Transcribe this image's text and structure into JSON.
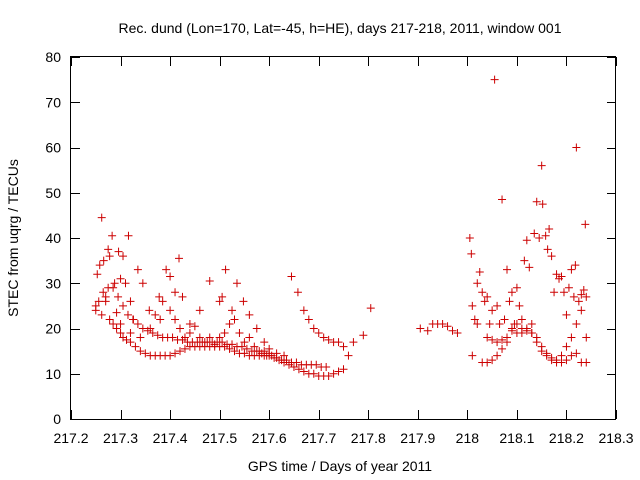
{
  "chart_data": {
    "type": "scatter",
    "title": "Rec. dund (Lon=170, Lat=-45, h=HE), days 217-218, 2011, window 001",
    "xlabel": "GPS time / Days of year 2011",
    "ylabel": "STEC from uqrg / TECUs",
    "xlim": [
      217.2,
      218.3
    ],
    "ylim": [
      0,
      80
    ],
    "xticks": [
      "217.2",
      "217.3",
      "217.4",
      "217.5",
      "217.6",
      "217.7",
      "217.8",
      "217.9",
      "218",
      "218.1",
      "218.2",
      "218.3"
    ],
    "yticks": [
      "0",
      "10",
      "20",
      "30",
      "40",
      "50",
      "60",
      "70",
      "80"
    ],
    "grid": false,
    "marker": "plus",
    "color": "#cc0000",
    "points": [
      [
        217.25,
        25
      ],
      [
        217.253,
        32
      ],
      [
        217.258,
        34
      ],
      [
        217.262,
        44.5
      ],
      [
        217.266,
        35
      ],
      [
        217.27,
        26
      ],
      [
        217.275,
        37.5
      ],
      [
        217.278,
        36
      ],
      [
        217.283,
        40.5
      ],
      [
        217.288,
        30
      ],
      [
        217.292,
        23.5
      ],
      [
        217.296,
        37
      ],
      [
        217.3,
        31
      ],
      [
        217.305,
        36
      ],
      [
        217.31,
        30
      ],
      [
        217.316,
        40.5
      ],
      [
        217.32,
        26
      ],
      [
        217.326,
        22
      ],
      [
        217.335,
        33
      ],
      [
        217.345,
        30
      ],
      [
        217.358,
        24
      ],
      [
        217.37,
        23
      ],
      [
        217.378,
        27
      ],
      [
        217.385,
        26
      ],
      [
        217.392,
        33
      ],
      [
        217.4,
        31.5
      ],
      [
        217.41,
        28
      ],
      [
        217.418,
        35.5
      ],
      [
        217.425,
        27
      ],
      [
        217.44,
        21
      ],
      [
        217.46,
        24
      ],
      [
        217.48,
        30.5
      ],
      [
        217.5,
        26
      ],
      [
        217.505,
        27
      ],
      [
        217.512,
        33
      ],
      [
        217.525,
        24
      ],
      [
        217.535,
        30
      ],
      [
        217.548,
        26
      ],
      [
        217.56,
        23
      ],
      [
        217.575,
        20
      ],
      [
        217.59,
        17
      ],
      [
        217.6,
        15.5
      ],
      [
        217.615,
        14.5
      ],
      [
        217.63,
        14
      ],
      [
        217.645,
        31.5
      ],
      [
        217.658,
        28
      ],
      [
        217.67,
        24
      ],
      [
        217.68,
        22
      ],
      [
        217.69,
        20
      ],
      [
        217.7,
        19
      ],
      [
        217.71,
        18
      ],
      [
        217.72,
        17.5
      ],
      [
        217.73,
        17
      ],
      [
        217.74,
        17
      ],
      [
        217.75,
        16
      ],
      [
        217.76,
        14
      ],
      [
        217.77,
        17
      ],
      [
        217.79,
        18.5
      ],
      [
        217.805,
        24.5
      ],
      [
        217.25,
        24
      ],
      [
        217.256,
        26
      ],
      [
        217.262,
        23
      ],
      [
        217.27,
        27
      ],
      [
        217.278,
        22
      ],
      [
        217.285,
        21
      ],
      [
        217.292,
        20
      ],
      [
        217.3,
        19
      ],
      [
        217.305,
        18
      ],
      [
        217.312,
        17.5
      ],
      [
        217.32,
        17
      ],
      [
        217.33,
        16
      ],
      [
        217.34,
        15
      ],
      [
        217.35,
        14.5
      ],
      [
        217.36,
        14
      ],
      [
        217.37,
        14
      ],
      [
        217.38,
        14
      ],
      [
        217.39,
        14
      ],
      [
        217.4,
        14
      ],
      [
        217.41,
        14.5
      ],
      [
        217.42,
        15
      ],
      [
        217.43,
        15.5
      ],
      [
        217.44,
        16
      ],
      [
        217.45,
        16
      ],
      [
        217.46,
        16
      ],
      [
        217.47,
        16
      ],
      [
        217.48,
        16
      ],
      [
        217.49,
        16
      ],
      [
        217.5,
        16
      ],
      [
        217.51,
        16
      ],
      [
        217.52,
        15.5
      ],
      [
        217.53,
        15
      ],
      [
        217.54,
        14.5
      ],
      [
        217.55,
        14.5
      ],
      [
        217.56,
        14
      ],
      [
        217.57,
        14
      ],
      [
        217.58,
        14
      ],
      [
        217.59,
        14
      ],
      [
        217.6,
        14
      ],
      [
        217.61,
        13.5
      ],
      [
        217.62,
        13
      ],
      [
        217.63,
        12.5
      ],
      [
        217.64,
        12
      ],
      [
        217.65,
        11.5
      ],
      [
        217.66,
        11
      ],
      [
        217.67,
        10.5
      ],
      [
        217.68,
        10
      ],
      [
        217.69,
        10
      ],
      [
        217.7,
        9.5
      ],
      [
        217.71,
        9.5
      ],
      [
        217.72,
        9.5
      ],
      [
        217.73,
        10
      ],
      [
        217.74,
        10.5
      ],
      [
        217.75,
        11
      ],
      [
        217.265,
        28
      ],
      [
        217.275,
        29
      ],
      [
        217.285,
        29
      ],
      [
        217.295,
        27
      ],
      [
        217.305,
        25
      ],
      [
        217.315,
        23
      ],
      [
        217.325,
        22
      ],
      [
        217.335,
        21
      ],
      [
        217.345,
        20
      ],
      [
        217.355,
        19.5
      ],
      [
        217.365,
        19
      ],
      [
        217.375,
        18.5
      ],
      [
        217.385,
        18
      ],
      [
        217.395,
        18
      ],
      [
        217.405,
        18
      ],
      [
        217.415,
        17.5
      ],
      [
        217.425,
        17.5
      ],
      [
        217.435,
        17
      ],
      [
        217.445,
        17
      ],
      [
        217.455,
        17
      ],
      [
        217.465,
        17
      ],
      [
        217.475,
        17
      ],
      [
        217.485,
        17
      ],
      [
        217.495,
        17
      ],
      [
        217.505,
        17
      ],
      [
        217.515,
        16.5
      ],
      [
        217.525,
        16.5
      ],
      [
        217.535,
        16
      ],
      [
        217.545,
        16
      ],
      [
        217.555,
        15.5
      ],
      [
        217.565,
        15
      ],
      [
        217.575,
        15
      ],
      [
        217.585,
        14.5
      ],
      [
        217.595,
        14
      ],
      [
        217.605,
        14
      ],
      [
        217.615,
        13.5
      ],
      [
        217.625,
        13
      ],
      [
        217.635,
        13
      ],
      [
        217.645,
        12.5
      ],
      [
        217.655,
        12.5
      ],
      [
        217.665,
        12
      ],
      [
        217.675,
        12
      ],
      [
        217.685,
        12
      ],
      [
        217.695,
        12
      ],
      [
        217.705,
        11.5
      ],
      [
        217.715,
        11.5
      ],
      [
        217.3,
        21
      ],
      [
        217.32,
        19
      ],
      [
        217.34,
        18
      ],
      [
        217.36,
        20
      ],
      [
        217.38,
        22
      ],
      [
        217.4,
        24
      ],
      [
        217.41,
        22
      ],
      [
        217.42,
        20
      ],
      [
        217.43,
        18
      ],
      [
        217.44,
        19
      ],
      [
        217.45,
        20.5
      ],
      [
        217.46,
        18
      ],
      [
        217.47,
        17
      ],
      [
        217.48,
        18
      ],
      [
        217.49,
        16.5
      ],
      [
        217.5,
        18
      ],
      [
        217.51,
        19
      ],
      [
        217.52,
        21
      ],
      [
        217.53,
        22
      ],
      [
        217.54,
        19
      ],
      [
        217.55,
        17
      ],
      [
        217.56,
        18
      ],
      [
        217.57,
        16
      ],
      [
        217.58,
        15
      ],
      [
        217.59,
        15
      ],
      [
        217.6,
        14.5
      ],
      [
        217.905,
        20
      ],
      [
        217.92,
        19.5
      ],
      [
        217.93,
        21
      ],
      [
        217.94,
        21
      ],
      [
        217.95,
        21
      ],
      [
        217.96,
        20.5
      ],
      [
        217.97,
        19.5
      ],
      [
        217.98,
        19
      ],
      [
        218.005,
        40
      ],
      [
        218.008,
        36.5
      ],
      [
        218.01,
        25
      ],
      [
        218.015,
        22
      ],
      [
        218.02,
        30
      ],
      [
        218.025,
        32.5
      ],
      [
        218.03,
        28
      ],
      [
        218.035,
        26
      ],
      [
        218.04,
        27
      ],
      [
        218.045,
        21
      ],
      [
        218.05,
        24
      ],
      [
        218.055,
        75
      ],
      [
        218.06,
        25
      ],
      [
        218.065,
        21
      ],
      [
        218.07,
        48.5
      ],
      [
        218.075,
        22
      ],
      [
        218.08,
        33
      ],
      [
        218.085,
        26
      ],
      [
        218.09,
        28
      ],
      [
        218.095,
        21
      ],
      [
        218.1,
        29
      ],
      [
        218.105,
        25
      ],
      [
        218.11,
        20
      ],
      [
        218.115,
        35
      ],
      [
        218.12,
        39.5
      ],
      [
        218.125,
        33.5
      ],
      [
        218.13,
        21
      ],
      [
        218.135,
        41
      ],
      [
        218.14,
        48
      ],
      [
        218.145,
        40
      ],
      [
        218.15,
        56
      ],
      [
        218.152,
        47.5
      ],
      [
        218.158,
        40.5
      ],
      [
        218.162,
        37.5
      ],
      [
        218.165,
        42
      ],
      [
        218.17,
        36
      ],
      [
        218.175,
        28
      ],
      [
        218.18,
        32
      ],
      [
        218.185,
        31
      ],
      [
        218.19,
        31.5
      ],
      [
        218.195,
        28
      ],
      [
        218.2,
        23
      ],
      [
        218.205,
        29
      ],
      [
        218.21,
        33
      ],
      [
        218.215,
        27
      ],
      [
        218.218,
        34
      ],
      [
        218.22,
        60
      ],
      [
        218.225,
        26
      ],
      [
        218.23,
        27.5
      ],
      [
        218.235,
        28.5
      ],
      [
        218.238,
        43
      ],
      [
        218.24,
        18
      ],
      [
        218.01,
        14
      ],
      [
        218.02,
        21
      ],
      [
        218.03,
        12.5
      ],
      [
        218.04,
        12.5
      ],
      [
        218.05,
        13
      ],
      [
        218.06,
        14
      ],
      [
        218.07,
        15.5
      ],
      [
        218.08,
        17
      ],
      [
        218.09,
        20
      ],
      [
        218.1,
        19
      ],
      [
        218.11,
        19
      ],
      [
        218.12,
        19.5
      ],
      [
        218.13,
        19
      ],
      [
        218.14,
        18
      ],
      [
        218.15,
        15
      ],
      [
        218.16,
        14
      ],
      [
        218.17,
        13
      ],
      [
        218.18,
        12.5
      ],
      [
        218.19,
        12.5
      ],
      [
        218.2,
        13
      ],
      [
        218.21,
        14
      ],
      [
        218.22,
        14.5
      ],
      [
        218.23,
        12.5
      ],
      [
        218.24,
        12.5
      ],
      [
        218.04,
        18
      ],
      [
        218.05,
        17.5
      ],
      [
        218.06,
        17
      ],
      [
        218.07,
        17.5
      ],
      [
        218.08,
        18
      ],
      [
        218.09,
        19.5
      ],
      [
        218.1,
        21
      ],
      [
        218.11,
        22
      ],
      [
        218.12,
        20
      ],
      [
        218.13,
        19
      ],
      [
        218.14,
        17
      ],
      [
        218.15,
        16
      ],
      [
        218.16,
        14.5
      ],
      [
        218.17,
        13.5
      ],
      [
        218.18,
        13
      ],
      [
        218.19,
        14
      ],
      [
        218.2,
        16
      ],
      [
        218.21,
        18
      ],
      [
        218.22,
        21
      ],
      [
        218.23,
        24
      ],
      [
        218.24,
        27
      ]
    ]
  }
}
